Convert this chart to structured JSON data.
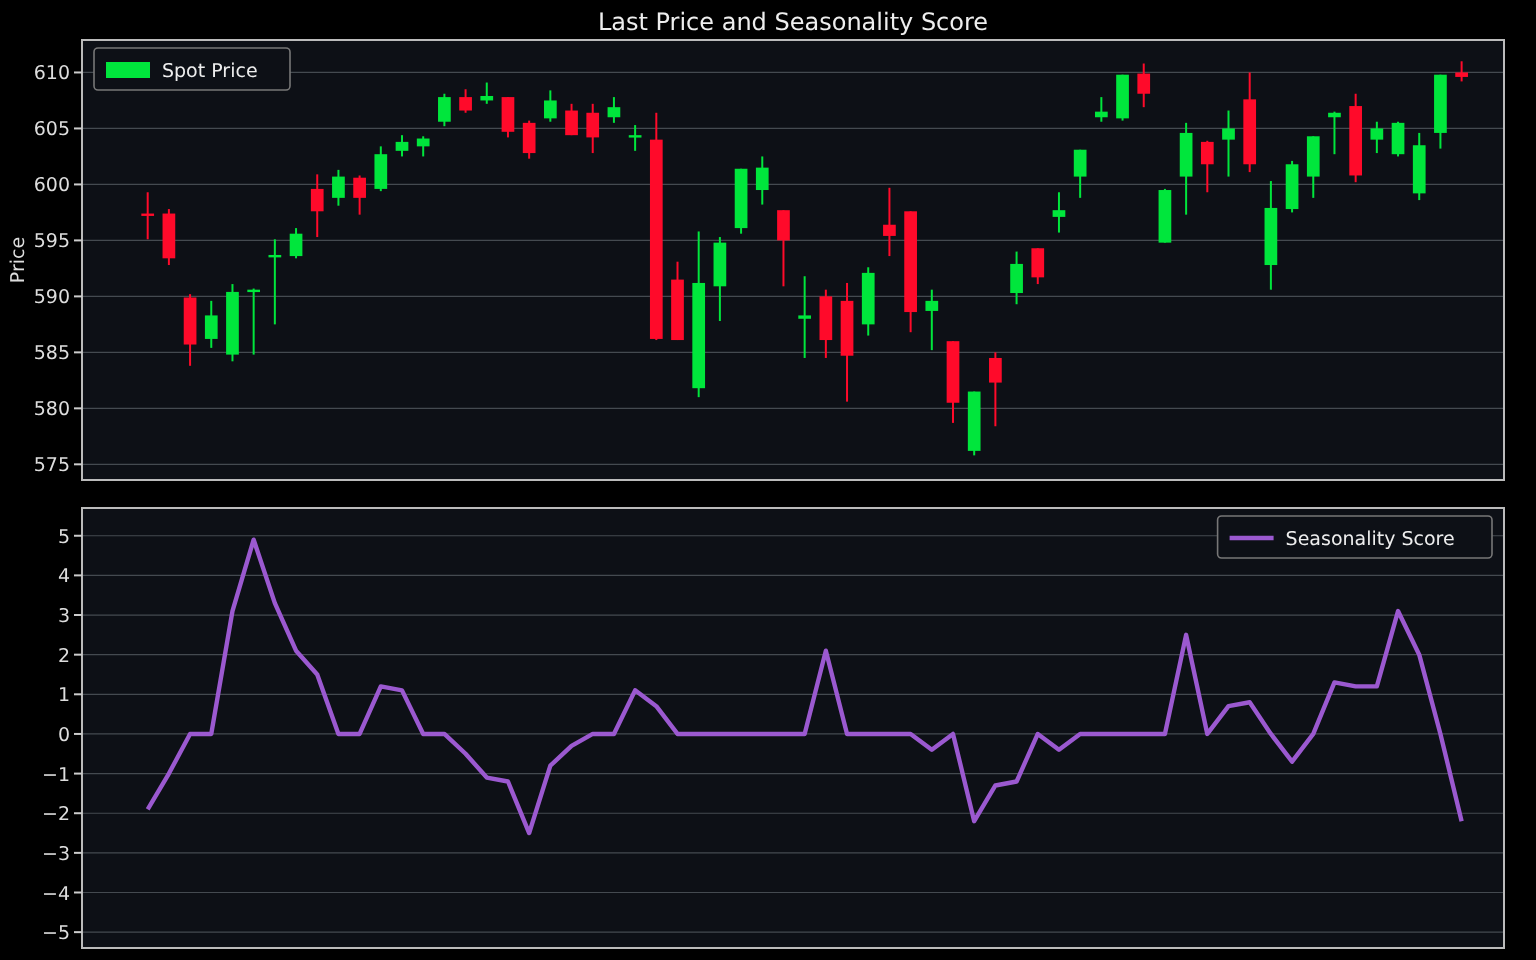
{
  "chart_data": [
    {
      "type": "candlestick",
      "title": "Last Price and Seasonality Score",
      "ylabel": "Price",
      "categories": [
        null,
        null,
        null,
        null,
        null,
        null,
        null,
        null,
        null,
        null,
        null,
        null,
        null,
        null,
        null,
        null,
        null,
        null,
        null,
        null,
        null,
        null,
        null,
        null,
        null,
        null,
        null,
        null,
        null,
        null,
        null,
        null,
        null,
        null,
        null,
        null,
        null,
        null,
        null,
        null,
        null,
        null,
        null,
        null,
        null,
        null,
        null,
        null,
        null,
        null,
        null,
        null,
        null,
        null,
        null,
        null,
        null,
        null,
        null,
        null,
        null,
        null,
        null
      ],
      "ylim": [
        573.6,
        612.9
      ],
      "yticks": [
        575,
        580,
        585,
        590,
        595,
        600,
        605,
        610
      ],
      "grid": "y",
      "legend": "top left",
      "tick_labels": "y",
      "series": [
        {
          "name": "Spot Price",
          "color": "#00e63c",
          "ohlc": [
            [
              597.4,
              599.3,
              595.1,
              597.2
            ],
            [
              597.4,
              597.8,
              592.8,
              593.4
            ],
            [
              589.9,
              590.2,
              583.8,
              585.7
            ],
            [
              586.2,
              589.6,
              585.4,
              588.3
            ],
            [
              584.8,
              591.1,
              584.2,
              590.4
            ],
            [
              590.4,
              590.7,
              584.8,
              590.6
            ],
            [
              593.5,
              595.1,
              587.5,
              593.7
            ],
            [
              593.6,
              596.1,
              593.4,
              595.6
            ],
            [
              599.6,
              600.9,
              595.3,
              597.6
            ],
            [
              598.8,
              601.3,
              598.1,
              600.7
            ],
            [
              600.6,
              600.8,
              597.3,
              598.8
            ],
            [
              599.6,
              603.4,
              599.4,
              602.7
            ],
            [
              603.0,
              604.4,
              602.5,
              603.8
            ],
            [
              603.4,
              604.3,
              602.5,
              604.1
            ],
            [
              605.6,
              608.1,
              605.2,
              607.8
            ],
            [
              607.8,
              608.5,
              606.4,
              606.6
            ],
            [
              607.5,
              609.1,
              607.2,
              607.9
            ],
            [
              607.8,
              607.8,
              604.2,
              604.7
            ],
            [
              605.5,
              605.7,
              602.3,
              602.8
            ],
            [
              605.9,
              608.4,
              605.6,
              607.5
            ],
            [
              606.6,
              607.2,
              604.4,
              604.4
            ],
            [
              606.4,
              607.2,
              602.8,
              604.2
            ],
            [
              606.0,
              607.8,
              605.5,
              606.9
            ],
            [
              604.2,
              605.3,
              603.0,
              604.4
            ],
            [
              604.0,
              606.4,
              586.1,
              586.2
            ],
            [
              591.5,
              593.1,
              586.1,
              586.1
            ],
            [
              581.8,
              595.8,
              581.0,
              591.2
            ],
            [
              590.9,
              595.3,
              587.8,
              594.8
            ],
            [
              596.1,
              601.4,
              595.6,
              601.4
            ],
            [
              599.5,
              602.5,
              598.2,
              601.5
            ],
            [
              597.7,
              597.7,
              590.9,
              595.0
            ],
            [
              588.0,
              591.8,
              584.5,
              588.3
            ],
            [
              590.0,
              590.6,
              584.5,
              586.1
            ],
            [
              589.6,
              591.2,
              580.6,
              584.7
            ],
            [
              587.5,
              592.6,
              586.5,
              592.1
            ],
            [
              596.4,
              599.7,
              593.6,
              595.4
            ],
            [
              597.6,
              597.6,
              586.8,
              588.6
            ],
            [
              588.7,
              590.6,
              585.2,
              589.6
            ],
            [
              586.0,
              586.0,
              578.7,
              580.5
            ],
            [
              576.2,
              581.5,
              575.8,
              581.5
            ],
            [
              584.5,
              585.0,
              578.4,
              582.3
            ],
            [
              590.3,
              594.0,
              589.3,
              592.9
            ],
            [
              594.3,
              594.3,
              591.1,
              591.7
            ],
            [
              597.1,
              599.3,
              595.7,
              597.7
            ],
            [
              600.7,
              603.1,
              598.8,
              603.1
            ],
            [
              606.0,
              607.8,
              605.6,
              606.5
            ],
            [
              605.9,
              609.8,
              605.7,
              609.8
            ],
            [
              609.9,
              610.8,
              606.9,
              608.1
            ],
            [
              594.8,
              599.6,
              594.8,
              599.5
            ],
            [
              600.7,
              605.5,
              597.3,
              604.6
            ],
            [
              603.8,
              603.9,
              599.3,
              601.8
            ],
            [
              604.0,
              606.6,
              600.7,
              605.0
            ],
            [
              607.6,
              610.0,
              601.1,
              601.8
            ],
            [
              592.8,
              600.3,
              590.6,
              597.9
            ],
            [
              597.8,
              602.1,
              597.5,
              601.8
            ],
            [
              600.7,
              604.3,
              598.8,
              604.3
            ],
            [
              606.0,
              606.5,
              602.7,
              606.4
            ],
            [
              607.0,
              608.1,
              600.2,
              600.8
            ],
            [
              604.0,
              605.6,
              602.8,
              605.0
            ],
            [
              602.7,
              605.6,
              602.5,
              605.5
            ],
            [
              599.2,
              604.6,
              598.6,
              603.5
            ],
            [
              604.6,
              609.8,
              603.2,
              609.8
            ],
            [
              610.0,
              611.0,
              609.2,
              609.6
            ]
          ],
          "colors": [
            "#ff0a2a",
            "#ff0a2a",
            "#ff0a2a",
            "#00e63c",
            "#00e63c",
            "#00e63c",
            "#00e63c",
            "#00e63c",
            "#ff0a2a",
            "#00e63c",
            "#ff0a2a",
            "#00e63c",
            "#00e63c",
            "#00e63c",
            "#00e63c",
            "#ff0a2a",
            "#00e63c",
            "#ff0a2a",
            "#ff0a2a",
            "#00e63c",
            "#ff0a2a",
            "#ff0a2a",
            "#00e63c",
            "#00e63c",
            "#ff0a2a",
            "#ff0a2a",
            "#00e63c",
            "#00e63c",
            "#00e63c",
            "#00e63c",
            "#ff0a2a",
            "#00e63c",
            "#ff0a2a",
            "#ff0a2a",
            "#00e63c",
            "#ff0a2a",
            "#ff0a2a",
            "#00e63c",
            "#ff0a2a",
            "#00e63c",
            "#ff0a2a",
            "#00e63c",
            "#ff0a2a",
            "#00e63c",
            "#00e63c",
            "#00e63c",
            "#00e63c",
            "#ff0a2a",
            "#00e63c",
            "#00e63c",
            "#ff0a2a",
            "#00e63c",
            "#ff0a2a",
            "#00e63c",
            "#00e63c",
            "#00e63c",
            "#00e63c",
            "#ff0a2a",
            "#00e63c",
            "#00e63c",
            "#00e63c",
            "#00e63c",
            "#ff0a2a"
          ]
        }
      ]
    },
    {
      "type": "line",
      "categories": [
        null,
        null,
        null,
        null,
        null,
        null,
        null,
        null,
        null,
        null,
        null,
        null,
        null,
        null,
        null,
        null,
        null,
        null,
        null,
        null,
        null,
        null,
        null,
        null,
        null,
        null,
        null,
        null,
        null,
        null,
        null,
        null,
        null,
        null,
        null,
        null,
        null,
        null,
        null,
        null,
        null,
        null,
        null,
        null,
        null,
        null,
        null,
        null,
        null,
        null,
        null,
        null,
        null,
        null,
        null,
        null,
        null,
        null,
        null,
        null,
        null,
        null,
        null
      ],
      "ylim": [
        -5.4,
        5.7
      ],
      "yticks": [
        {
          "value": -5,
          "label": "−5"
        },
        {
          "value": -4,
          "label": "−4"
        },
        {
          "value": -3,
          "label": "−3"
        },
        {
          "value": -2,
          "label": "−2"
        },
        {
          "value": -1,
          "label": "−1"
        },
        0,
        1,
        2,
        3,
        4,
        5
      ],
      "grid": "y",
      "legend": "top right",
      "tick_labels": "y",
      "marker": "none",
      "line_style": "solid",
      "series": [
        {
          "name": "Seasonality Score",
          "color": "#9b59d0",
          "values": [
            -1.9,
            -1.0,
            0,
            0,
            3.1,
            4.9,
            3.3,
            2.1,
            1.5,
            0,
            0,
            1.2,
            1.1,
            0,
            0,
            -0.5,
            -1.1,
            -1.2,
            -2.5,
            -0.8,
            -0.3,
            0,
            0,
            1.1,
            0.7,
            0,
            0,
            0,
            0,
            0,
            0,
            0,
            2.1,
            0,
            0,
            0,
            0,
            -0.4,
            0,
            -2.2,
            -1.3,
            -1.2,
            0,
            -0.4,
            0,
            0,
            0,
            0,
            0,
            2.5,
            0,
            0.7,
            0.8,
            0,
            -0.7,
            0,
            1.3,
            1.2,
            1.2,
            3.1,
            2.0,
            0,
            -2.2
          ]
        }
      ]
    }
  ]
}
